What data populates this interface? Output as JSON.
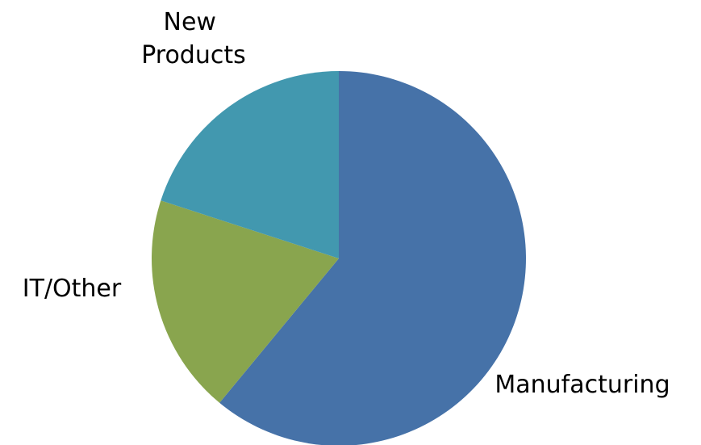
{
  "chart_data": {
    "type": "pie",
    "start_angle_deg": 0,
    "direction": "clockwise",
    "slices": [
      {
        "label": "Manufacturing",
        "value": 61,
        "color": "#4672A8"
      },
      {
        "label": "IT/Other",
        "value": 19,
        "color": "#89A54E"
      },
      {
        "label": "New Products",
        "value": 20,
        "color": "#4298AF"
      }
    ],
    "legend": "none"
  }
}
